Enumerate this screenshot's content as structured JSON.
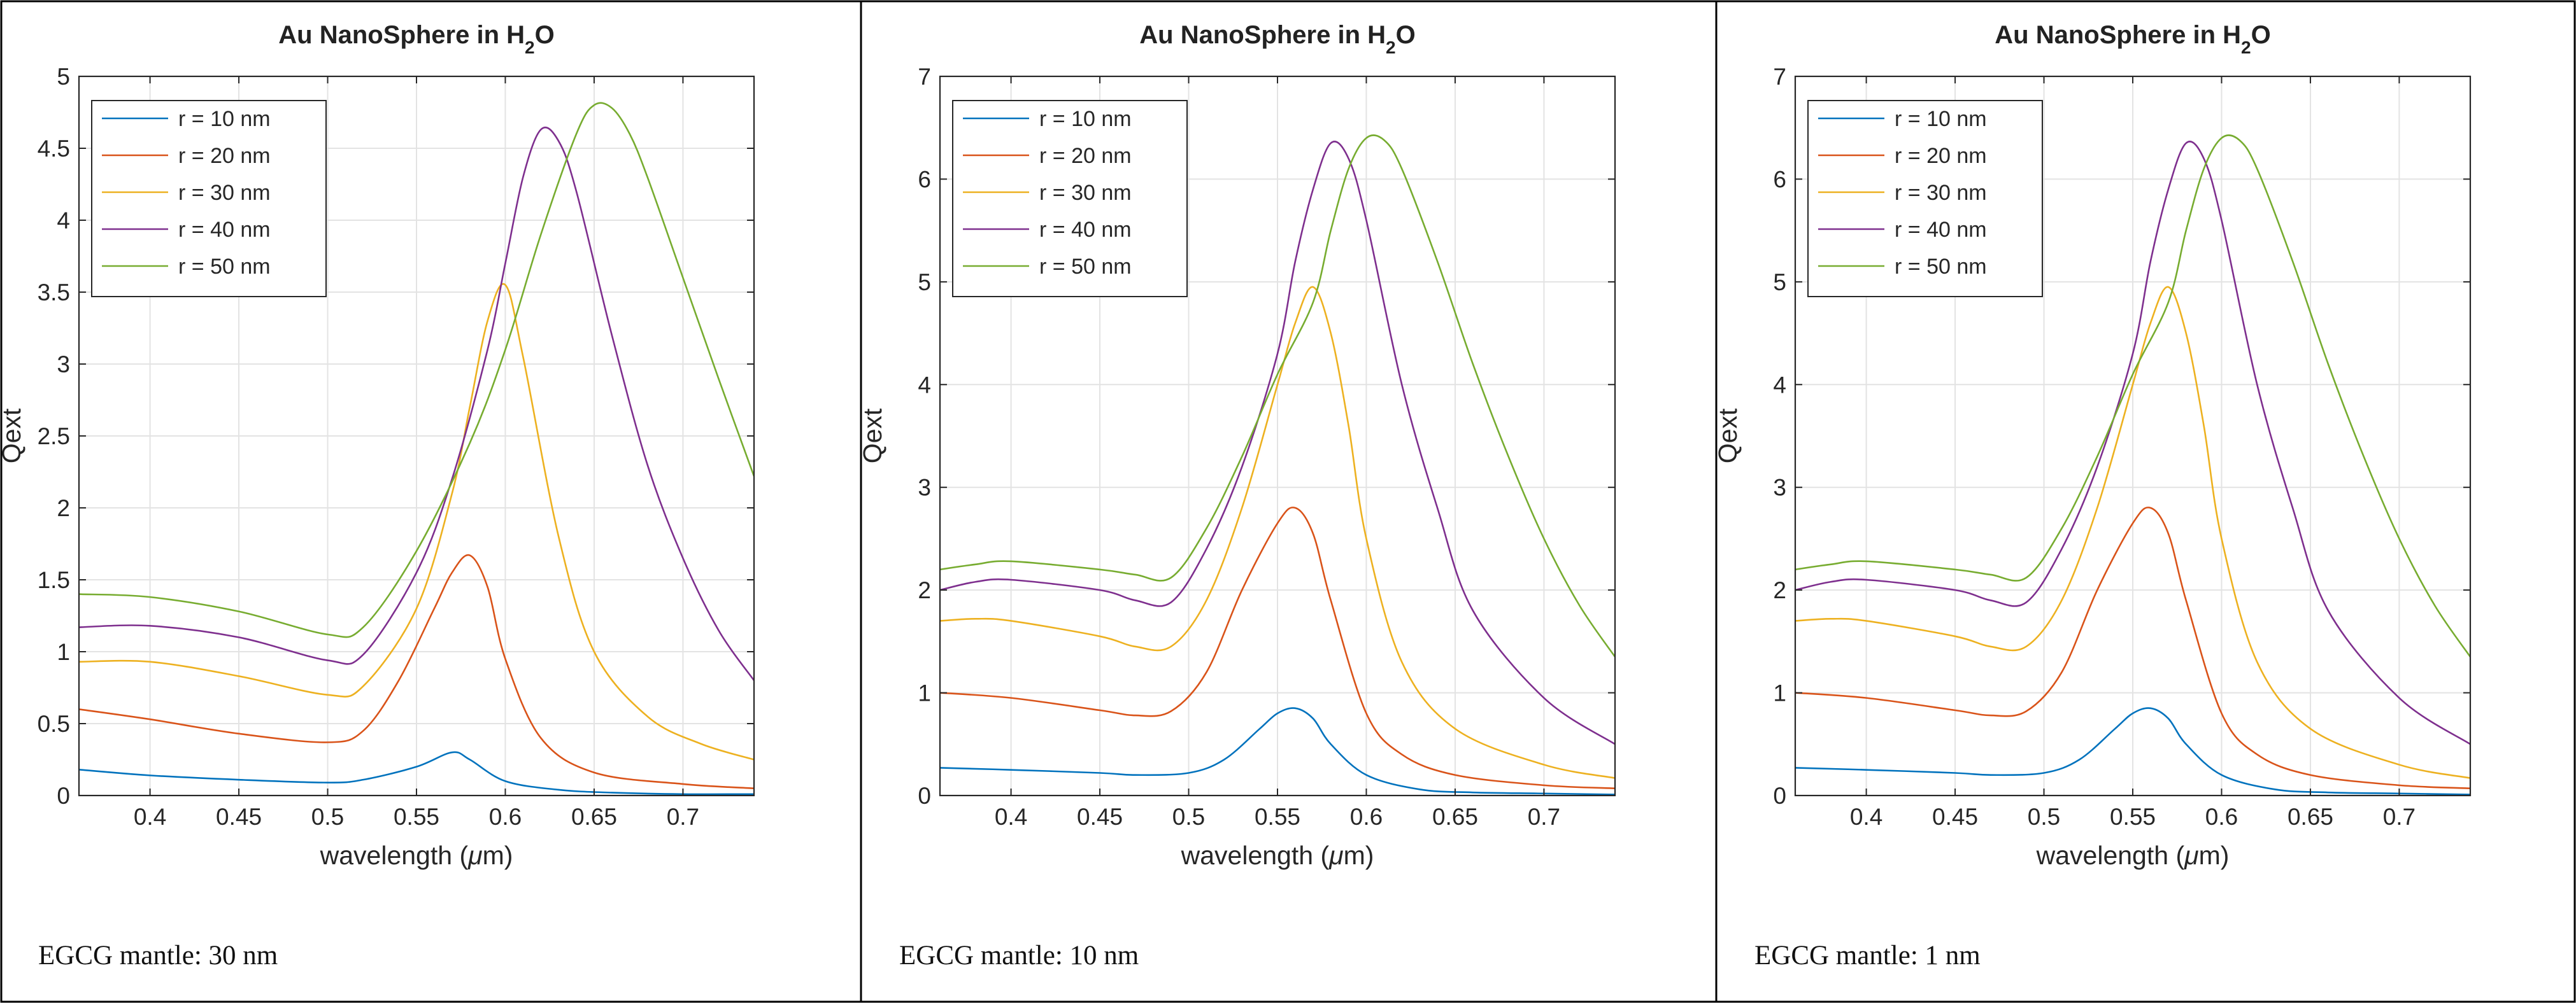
{
  "chart_data": [
    {
      "type": "line",
      "title_main": "Au NanoSphere in H",
      "title_sub": "2",
      "title_end": "O",
      "xlabel_pre": "wavelength (",
      "xlabel_mu": "μ",
      "xlabel_post": "m)",
      "ylabel": "Qext",
      "xlim": [
        0.36,
        0.74
      ],
      "ylim": [
        0,
        5
      ],
      "xticks": [
        "0.4",
        "0.45",
        "0.5",
        "0.55",
        "0.6",
        "0.65",
        "0.7"
      ],
      "xtick_values": [
        0.4,
        0.45,
        0.5,
        0.55,
        0.6,
        0.65,
        0.7
      ],
      "yticks": [
        "0",
        "0.5",
        "1",
        "1.5",
        "2",
        "2.5",
        "3",
        "3.5",
        "4",
        "4.5",
        "5"
      ],
      "ytick_values": [
        0,
        0.5,
        1,
        1.5,
        2,
        2.5,
        3,
        3.5,
        4,
        4.5,
        5
      ],
      "caption": "EGCG mantle: 30 nm",
      "series": [
        {
          "name": "r = 10 nm",
          "color": "#0072BD",
          "x": [
            0.36,
            0.4,
            0.45,
            0.5,
            0.52,
            0.55,
            0.57,
            0.58,
            0.6,
            0.63,
            0.66,
            0.7,
            0.74
          ],
          "y": [
            0.18,
            0.14,
            0.11,
            0.09,
            0.11,
            0.2,
            0.3,
            0.25,
            0.1,
            0.04,
            0.02,
            0.01,
            0.01
          ]
        },
        {
          "name": "r = 20 nm",
          "color": "#D95319",
          "x": [
            0.36,
            0.4,
            0.45,
            0.5,
            0.52,
            0.54,
            0.56,
            0.57,
            0.58,
            0.59,
            0.6,
            0.62,
            0.65,
            0.7,
            0.74
          ],
          "y": [
            0.6,
            0.53,
            0.43,
            0.37,
            0.45,
            0.8,
            1.3,
            1.55,
            1.67,
            1.45,
            0.95,
            0.4,
            0.16,
            0.08,
            0.05
          ]
        },
        {
          "name": "r = 30 nm",
          "color": "#EDB120",
          "x": [
            0.36,
            0.4,
            0.45,
            0.5,
            0.52,
            0.55,
            0.57,
            0.58,
            0.59,
            0.6,
            0.61,
            0.63,
            0.65,
            0.68,
            0.71,
            0.74
          ],
          "y": [
            0.93,
            0.93,
            0.83,
            0.7,
            0.76,
            1.3,
            2.1,
            2.7,
            3.3,
            3.55,
            3.05,
            1.8,
            1.0,
            0.55,
            0.36,
            0.25
          ]
        },
        {
          "name": "r = 40 nm",
          "color": "#7E2F8E",
          "x": [
            0.36,
            0.4,
            0.45,
            0.5,
            0.52,
            0.55,
            0.57,
            0.59,
            0.6,
            0.61,
            0.62,
            0.63,
            0.64,
            0.66,
            0.68,
            0.7,
            0.72,
            0.74
          ],
          "y": [
            1.17,
            1.18,
            1.1,
            0.94,
            0.98,
            1.55,
            2.2,
            3.1,
            3.7,
            4.3,
            4.63,
            4.55,
            4.2,
            3.2,
            2.3,
            1.65,
            1.15,
            0.8
          ]
        },
        {
          "name": "r = 50 nm",
          "color": "#77AC30",
          "x": [
            0.36,
            0.4,
            0.45,
            0.5,
            0.52,
            0.55,
            0.58,
            0.6,
            0.62,
            0.64,
            0.65,
            0.66,
            0.67,
            0.68,
            0.7,
            0.72,
            0.74
          ],
          "y": [
            1.4,
            1.38,
            1.28,
            1.12,
            1.17,
            1.7,
            2.45,
            3.1,
            3.9,
            4.6,
            4.8,
            4.78,
            4.6,
            4.3,
            3.6,
            2.9,
            2.22
          ]
        }
      ]
    },
    {
      "type": "line",
      "title_main": "Au NanoSphere in H",
      "title_sub": "2",
      "title_end": "O",
      "xlabel_pre": "wavelength (",
      "xlabel_mu": "μ",
      "xlabel_post": "m)",
      "ylabel": "Qext",
      "xlim": [
        0.36,
        0.74
      ],
      "ylim": [
        0,
        7
      ],
      "xticks": [
        "0.4",
        "0.45",
        "0.5",
        "0.55",
        "0.6",
        "0.65",
        "0.7"
      ],
      "xtick_values": [
        0.4,
        0.45,
        0.5,
        0.55,
        0.6,
        0.65,
        0.7
      ],
      "yticks": [
        "0",
        "1",
        "2",
        "3",
        "4",
        "5",
        "6",
        "7"
      ],
      "ytick_values": [
        0,
        1,
        2,
        3,
        4,
        5,
        6,
        7
      ],
      "caption": "EGCG mantle: 10 nm",
      "series": [
        {
          "name": "r = 10 nm",
          "color": "#0072BD",
          "x": [
            0.36,
            0.4,
            0.45,
            0.47,
            0.5,
            0.52,
            0.54,
            0.55,
            0.56,
            0.57,
            0.58,
            0.6,
            0.63,
            0.66,
            0.7,
            0.74
          ],
          "y": [
            0.27,
            0.25,
            0.22,
            0.2,
            0.22,
            0.35,
            0.65,
            0.8,
            0.85,
            0.75,
            0.5,
            0.2,
            0.06,
            0.03,
            0.02,
            0.01
          ]
        },
        {
          "name": "r = 20 nm",
          "color": "#D95319",
          "x": [
            0.36,
            0.4,
            0.45,
            0.47,
            0.49,
            0.51,
            0.53,
            0.55,
            0.56,
            0.57,
            0.58,
            0.6,
            0.62,
            0.65,
            0.7,
            0.74
          ],
          "y": [
            1.0,
            0.95,
            0.83,
            0.78,
            0.82,
            1.2,
            2.0,
            2.65,
            2.8,
            2.55,
            1.9,
            0.8,
            0.4,
            0.2,
            0.1,
            0.07
          ]
        },
        {
          "name": "r = 30 nm",
          "color": "#EDB120",
          "x": [
            0.36,
            0.38,
            0.4,
            0.45,
            0.47,
            0.49,
            0.51,
            0.53,
            0.55,
            0.56,
            0.57,
            0.58,
            0.59,
            0.6,
            0.62,
            0.65,
            0.7,
            0.74
          ],
          "y": [
            1.7,
            1.72,
            1.7,
            1.55,
            1.45,
            1.45,
            1.9,
            2.8,
            4.0,
            4.6,
            4.95,
            4.5,
            3.6,
            2.5,
            1.3,
            0.65,
            0.3,
            0.17
          ]
        },
        {
          "name": "r = 40 nm",
          "color": "#7E2F8E",
          "x": [
            0.36,
            0.38,
            0.4,
            0.45,
            0.47,
            0.49,
            0.51,
            0.53,
            0.55,
            0.56,
            0.57,
            0.58,
            0.59,
            0.6,
            0.62,
            0.64,
            0.66,
            0.7,
            0.74
          ],
          "y": [
            2.0,
            2.08,
            2.1,
            2.0,
            1.9,
            1.88,
            2.4,
            3.2,
            4.3,
            5.2,
            5.9,
            6.35,
            6.2,
            5.6,
            4.0,
            2.8,
            1.8,
            0.95,
            0.5
          ]
        },
        {
          "name": "r = 50 nm",
          "color": "#77AC30",
          "x": [
            0.36,
            0.38,
            0.4,
            0.45,
            0.47,
            0.49,
            0.51,
            0.53,
            0.55,
            0.57,
            0.58,
            0.59,
            0.6,
            0.61,
            0.62,
            0.64,
            0.66,
            0.68,
            0.7,
            0.72,
            0.74
          ],
          "y": [
            2.2,
            2.25,
            2.28,
            2.2,
            2.15,
            2.12,
            2.6,
            3.3,
            4.1,
            4.8,
            5.5,
            6.1,
            6.4,
            6.38,
            6.1,
            5.2,
            4.2,
            3.3,
            2.5,
            1.85,
            1.35
          ]
        }
      ]
    },
    {
      "type": "line",
      "title_main": "Au NanoSphere in H",
      "title_sub": "2",
      "title_end": "O",
      "xlabel_pre": "wavelength (",
      "xlabel_mu": "μ",
      "xlabel_post": "m)",
      "ylabel": "Qext",
      "xlim": [
        0.36,
        0.74
      ],
      "ylim": [
        0,
        7
      ],
      "xticks": [
        "0.4",
        "0.45",
        "0.5",
        "0.55",
        "0.6",
        "0.65",
        "0.7"
      ],
      "xtick_values": [
        0.4,
        0.45,
        0.5,
        0.55,
        0.6,
        0.65,
        0.7
      ],
      "yticks": [
        "0",
        "1",
        "2",
        "3",
        "4",
        "5",
        "6",
        "7"
      ],
      "ytick_values": [
        0,
        1,
        2,
        3,
        4,
        5,
        6,
        7
      ],
      "caption": "EGCG mantle: 1 nm",
      "series": [
        {
          "name": "r = 10 nm",
          "color": "#0072BD",
          "x": [
            0.36,
            0.4,
            0.45,
            0.47,
            0.5,
            0.52,
            0.54,
            0.55,
            0.56,
            0.57,
            0.58,
            0.6,
            0.63,
            0.66,
            0.7,
            0.74
          ],
          "y": [
            0.27,
            0.25,
            0.22,
            0.2,
            0.22,
            0.35,
            0.65,
            0.8,
            0.85,
            0.75,
            0.5,
            0.2,
            0.06,
            0.03,
            0.02,
            0.01
          ]
        },
        {
          "name": "r = 20 nm",
          "color": "#D95319",
          "x": [
            0.36,
            0.4,
            0.45,
            0.47,
            0.49,
            0.51,
            0.53,
            0.55,
            0.56,
            0.57,
            0.58,
            0.6,
            0.62,
            0.65,
            0.7,
            0.74
          ],
          "y": [
            1.0,
            0.95,
            0.83,
            0.78,
            0.82,
            1.2,
            2.0,
            2.65,
            2.8,
            2.55,
            1.9,
            0.8,
            0.4,
            0.2,
            0.1,
            0.07
          ]
        },
        {
          "name": "r = 30 nm",
          "color": "#EDB120",
          "x": [
            0.36,
            0.38,
            0.4,
            0.45,
            0.47,
            0.49,
            0.51,
            0.53,
            0.55,
            0.56,
            0.57,
            0.58,
            0.59,
            0.6,
            0.62,
            0.65,
            0.7,
            0.74
          ],
          "y": [
            1.7,
            1.72,
            1.7,
            1.55,
            1.45,
            1.45,
            1.9,
            2.8,
            4.0,
            4.6,
            4.95,
            4.5,
            3.6,
            2.5,
            1.3,
            0.65,
            0.3,
            0.17
          ]
        },
        {
          "name": "r = 40 nm",
          "color": "#7E2F8E",
          "x": [
            0.36,
            0.38,
            0.4,
            0.45,
            0.47,
            0.49,
            0.51,
            0.53,
            0.55,
            0.56,
            0.57,
            0.58,
            0.59,
            0.6,
            0.62,
            0.64,
            0.66,
            0.7,
            0.74
          ],
          "y": [
            2.0,
            2.08,
            2.1,
            2.0,
            1.9,
            1.88,
            2.4,
            3.2,
            4.3,
            5.2,
            5.9,
            6.35,
            6.2,
            5.6,
            4.0,
            2.8,
            1.8,
            0.95,
            0.5
          ]
        },
        {
          "name": "r = 50 nm",
          "color": "#77AC30",
          "x": [
            0.36,
            0.38,
            0.4,
            0.45,
            0.47,
            0.49,
            0.51,
            0.53,
            0.55,
            0.57,
            0.58,
            0.59,
            0.6,
            0.61,
            0.62,
            0.64,
            0.66,
            0.68,
            0.7,
            0.72,
            0.74
          ],
          "y": [
            2.2,
            2.25,
            2.28,
            2.2,
            2.15,
            2.12,
            2.6,
            3.3,
            4.1,
            4.8,
            5.5,
            6.1,
            6.4,
            6.38,
            6.1,
            5.2,
            4.2,
            3.3,
            2.5,
            1.85,
            1.35
          ]
        }
      ]
    }
  ]
}
